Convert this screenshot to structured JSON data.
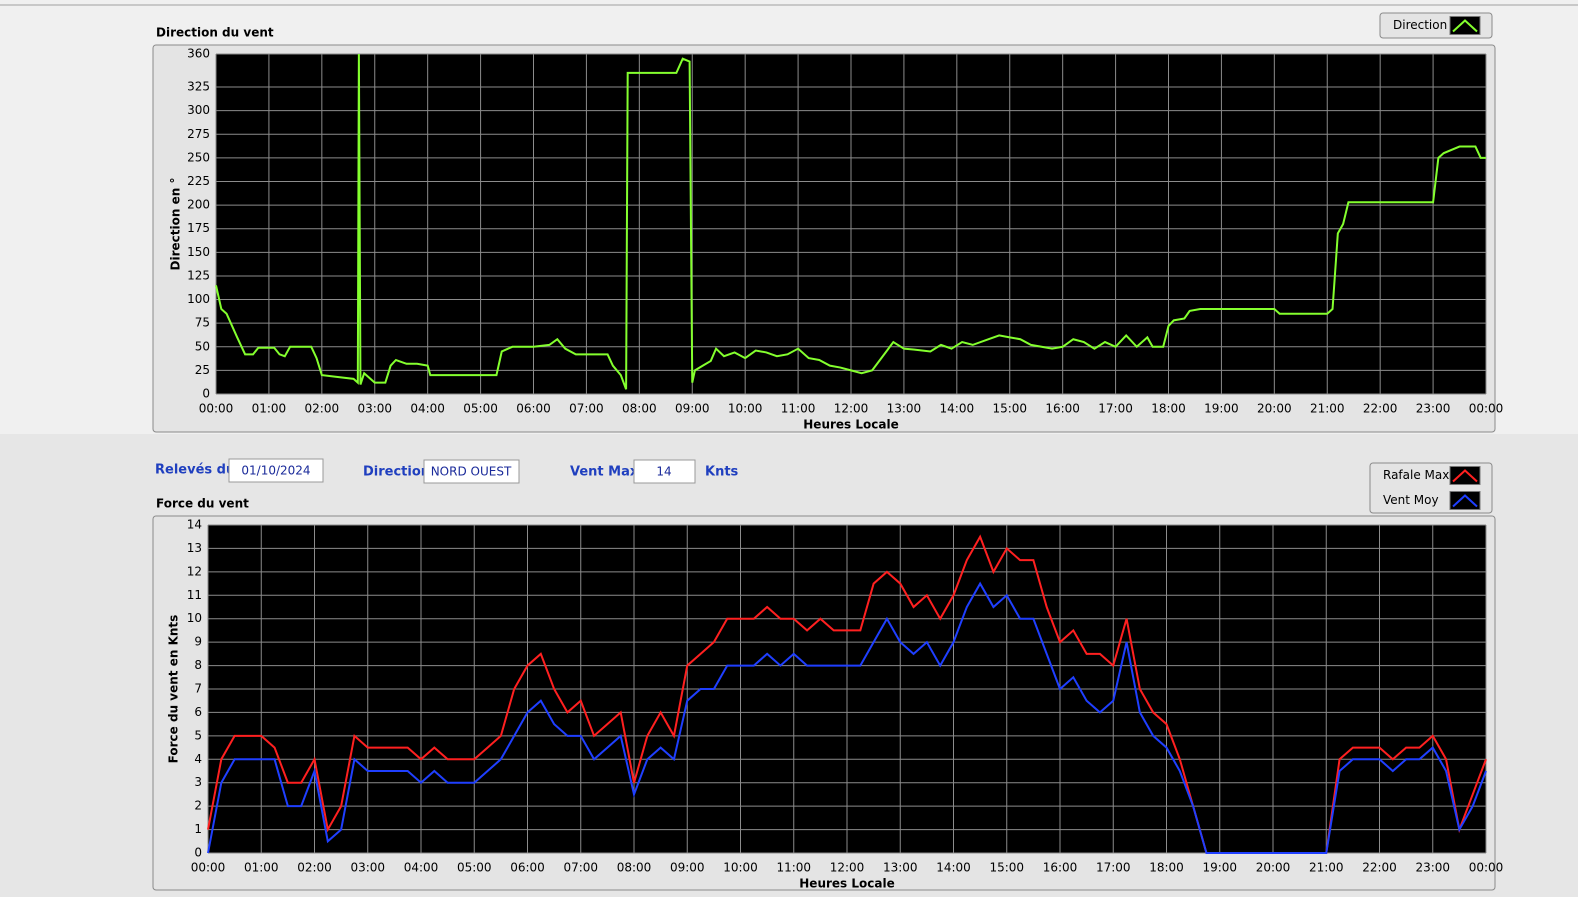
{
  "chart_data": [
    {
      "type": "line",
      "title": "Direction du vent",
      "xlabel": "Heures Locale",
      "ylabel": "Direction en °",
      "x": [
        0,
        0.1,
        0.2,
        0.4,
        0.55,
        0.7,
        0.8,
        1.1,
        1.2,
        1.3,
        1.4,
        1.8,
        1.9,
        2.0,
        2.3,
        2.6,
        2.68,
        2.7,
        2.73,
        2.8,
        3.0,
        3.2,
        3.3,
        3.4,
        3.6,
        3.8,
        4.0,
        4.05,
        5.0,
        5.3,
        5.4,
        5.6,
        6.0,
        6.3,
        6.45,
        6.6,
        6.8,
        7.4,
        7.5,
        7.65,
        7.75,
        7.78,
        8.2,
        8.7,
        8.82,
        8.95,
        9.0,
        9.05,
        9.2,
        9.35,
        9.45,
        9.6,
        9.8,
        10.0,
        10.2,
        10.4,
        10.6,
        10.8,
        11.0,
        11.2,
        11.4,
        11.6,
        11.8,
        12.0,
        12.2,
        12.4,
        12.6,
        12.8,
        13.0,
        13.2,
        13.5,
        13.7,
        13.9,
        14.1,
        14.3,
        14.6,
        14.8,
        15.0,
        15.2,
        15.4,
        15.6,
        15.8,
        16.0,
        16.2,
        16.4,
        16.6,
        16.8,
        17.0,
        17.2,
        17.4,
        17.6,
        17.7,
        17.9,
        18.0,
        18.1,
        18.3,
        18.4,
        18.6,
        20.0,
        20.1,
        21.0,
        21.1,
        21.2,
        21.3,
        21.4,
        22.0,
        23.0,
        23.1,
        23.2,
        23.5,
        23.8,
        23.9,
        24.0
      ],
      "series": [
        {
          "name": "Direction",
          "color": "#84ff2e",
          "values": [
            115,
            90,
            85,
            60,
            42,
            42,
            49,
            49,
            42,
            40,
            50,
            50,
            38,
            20,
            18,
            16,
            12,
            360,
            10,
            22,
            12,
            12,
            30,
            36,
            32,
            32,
            30,
            20,
            20,
            20,
            45,
            50,
            50,
            52,
            58,
            48,
            42,
            42,
            30,
            20,
            5,
            340,
            340,
            340,
            355,
            352,
            12,
            25,
            30,
            35,
            48,
            40,
            44,
            38,
            46,
            44,
            40,
            42,
            48,
            38,
            36,
            30,
            28,
            25,
            22,
            25,
            40,
            55,
            48,
            47,
            45,
            52,
            48,
            55,
            52,
            58,
            62,
            60,
            58,
            52,
            50,
            48,
            50,
            58,
            55,
            48,
            55,
            50,
            62,
            50,
            60,
            50,
            50,
            72,
            78,
            80,
            88,
            90,
            90,
            85,
            85,
            90,
            170,
            180,
            203,
            203,
            203,
            250,
            255,
            262,
            262,
            250,
            250
          ]
        }
      ],
      "xlim": [
        0,
        24
      ],
      "xticks": [
        {
          "value": 0,
          "label": "00:00"
        },
        {
          "value": 1,
          "label": "01:00"
        },
        {
          "value": 2,
          "label": "02:00"
        },
        {
          "value": 3,
          "label": "03:00"
        },
        {
          "value": 4,
          "label": "04:00"
        },
        {
          "value": 5,
          "label": "05:00"
        },
        {
          "value": 6,
          "label": "06:00"
        },
        {
          "value": 7,
          "label": "07:00"
        },
        {
          "value": 8,
          "label": "08:00"
        },
        {
          "value": 9,
          "label": "09:00"
        },
        {
          "value": 10,
          "label": "10:00"
        },
        {
          "value": 11,
          "label": "11:00"
        },
        {
          "value": 12,
          "label": "12:00"
        },
        {
          "value": 13,
          "label": "13:00"
        },
        {
          "value": 14,
          "label": "14:00"
        },
        {
          "value": 15,
          "label": "15:00"
        },
        {
          "value": 16,
          "label": "16:00"
        },
        {
          "value": 17,
          "label": "17:00"
        },
        {
          "value": 18,
          "label": "18:00"
        },
        {
          "value": 19,
          "label": "19:00"
        },
        {
          "value": 20,
          "label": "20:00"
        },
        {
          "value": 21,
          "label": "21:00"
        },
        {
          "value": 22,
          "label": "22:00"
        },
        {
          "value": 23,
          "label": "23:00"
        },
        {
          "value": 24,
          "label": "00:00"
        }
      ],
      "ylim": [
        0,
        360
      ],
      "yticks": [
        0,
        25,
        50,
        75,
        100,
        125,
        150,
        175,
        200,
        225,
        250,
        275,
        300,
        325,
        360
      ],
      "grid": true
    },
    {
      "type": "line",
      "title": "Force du vent",
      "xlabel": "Heures Locale",
      "ylabel": "Force du vent en Knts",
      "x": [
        0,
        0.25,
        0.5,
        0.75,
        1,
        1.25,
        1.5,
        1.75,
        2,
        2.25,
        2.5,
        2.75,
        3,
        3.25,
        3.5,
        3.75,
        4,
        4.25,
        4.5,
        4.75,
        5,
        5.25,
        5.5,
        5.75,
        6,
        6.25,
        6.5,
        6.75,
        7,
        7.25,
        7.5,
        7.75,
        8,
        8.25,
        8.5,
        8.75,
        9,
        9.25,
        9.5,
        9.75,
        10,
        10.25,
        10.5,
        10.75,
        11,
        11.25,
        11.5,
        11.75,
        12,
        12.25,
        12.5,
        12.75,
        13,
        13.25,
        13.5,
        13.75,
        14,
        14.25,
        14.5,
        14.75,
        15,
        15.25,
        15.5,
        15.75,
        16,
        16.25,
        16.5,
        16.75,
        17,
        17.25,
        17.5,
        17.75,
        18,
        18.25,
        18.5,
        18.75,
        19,
        19.25,
        19.5,
        19.75,
        20,
        20.25,
        20.5,
        20.75,
        21,
        21.25,
        21.5,
        21.75,
        22,
        22.25,
        22.5,
        22.75,
        23,
        23.25,
        23.5,
        23.75,
        24
      ],
      "series": [
        {
          "name": "Rafale Max",
          "color": "#ff2020",
          "values": [
            1,
            4,
            5,
            5,
            5,
            4.5,
            3,
            3,
            4,
            1,
            2,
            5,
            4.5,
            4.5,
            4.5,
            4.5,
            4,
            4.5,
            4,
            4,
            4,
            4.5,
            5,
            7,
            8,
            8.5,
            7,
            6,
            6.5,
            5,
            5.5,
            6,
            3,
            5,
            6,
            5,
            8,
            8.5,
            9,
            10,
            10,
            10,
            10.5,
            10,
            10,
            9.5,
            10,
            9.5,
            9.5,
            9.5,
            11.5,
            12,
            11.5,
            10.5,
            11,
            10,
            11,
            12.5,
            13.5,
            12,
            13,
            12.5,
            12.5,
            10.5,
            9,
            9.5,
            8.5,
            8.5,
            8,
            10,
            7,
            6,
            5.5,
            4,
            2,
            0,
            0,
            0,
            0,
            0,
            0,
            0,
            0,
            0,
            0,
            4,
            4.5,
            4.5,
            4.5,
            4,
            4.5,
            4.5,
            5,
            4,
            1,
            2.5,
            4
          ]
        },
        {
          "name": "Vent Moy",
          "color": "#1f3fff",
          "values": [
            0,
            3,
            4,
            4,
            4,
            4,
            2,
            2,
            3.5,
            0.5,
            1,
            4,
            3.5,
            3.5,
            3.5,
            3.5,
            3,
            3.5,
            3,
            3,
            3,
            3.5,
            4,
            5,
            6,
            6.5,
            5.5,
            5,
            5,
            4,
            4.5,
            5,
            2.5,
            4,
            4.5,
            4,
            6.5,
            7,
            7,
            8,
            8,
            8,
            8.5,
            8,
            8.5,
            8,
            8,
            8,
            8,
            8,
            9,
            10,
            9,
            8.5,
            9,
            8,
            9,
            10.5,
            11.5,
            10.5,
            11,
            10,
            10,
            8.5,
            7,
            7.5,
            6.5,
            6,
            6.5,
            9,
            6,
            5,
            4.5,
            3.5,
            2,
            0,
            0,
            0,
            0,
            0,
            0,
            0,
            0,
            0,
            0,
            3.5,
            4,
            4,
            4,
            3.5,
            4,
            4,
            4.5,
            3.5,
            1,
            2,
            3.5
          ]
        }
      ],
      "xlim": [
        0,
        24
      ],
      "xticks": [
        {
          "value": 0,
          "label": "00:00"
        },
        {
          "value": 1,
          "label": "01:00"
        },
        {
          "value": 2,
          "label": "02:00"
        },
        {
          "value": 3,
          "label": "03:00"
        },
        {
          "value": 4,
          "label": "04:00"
        },
        {
          "value": 5,
          "label": "05:00"
        },
        {
          "value": 6,
          "label": "06:00"
        },
        {
          "value": 7,
          "label": "07:00"
        },
        {
          "value": 8,
          "label": "08:00"
        },
        {
          "value": 9,
          "label": "09:00"
        },
        {
          "value": 10,
          "label": "10:00"
        },
        {
          "value": 11,
          "label": "11:00"
        },
        {
          "value": 12,
          "label": "12:00"
        },
        {
          "value": 13,
          "label": "13:00"
        },
        {
          "value": 14,
          "label": "14:00"
        },
        {
          "value": 15,
          "label": "15:00"
        },
        {
          "value": 16,
          "label": "16:00"
        },
        {
          "value": 17,
          "label": "17:00"
        },
        {
          "value": 18,
          "label": "18:00"
        },
        {
          "value": 19,
          "label": "19:00"
        },
        {
          "value": 20,
          "label": "20:00"
        },
        {
          "value": 21,
          "label": "21:00"
        },
        {
          "value": 22,
          "label": "22:00"
        },
        {
          "value": 23,
          "label": "23:00"
        },
        {
          "value": 24,
          "label": "00:00"
        }
      ],
      "ylim": [
        0,
        14
      ],
      "yticks": [
        0,
        1,
        2,
        3,
        4,
        5,
        6,
        7,
        8,
        9,
        10,
        11,
        12,
        13,
        14
      ],
      "grid": true
    }
  ],
  "controls": {
    "date_label": "Relevés du",
    "date": "01/10/2024",
    "direction_label": "Direction",
    "direction": "NORD OUEST",
    "vmax_label": "Vent Max",
    "vmax": "14",
    "unit": "Knts"
  }
}
